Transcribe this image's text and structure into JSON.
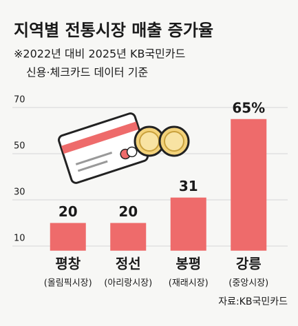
{
  "chart_data": {
    "type": "bar",
    "title": "지역별 전통시장 매출 증가율",
    "subtitle": [
      "※2022년 대비 2025년 KB국민카드",
      "신용·체크카드 데이터 기준"
    ],
    "categories": [
      "평창",
      "정선",
      "봉평",
      "강릉"
    ],
    "category_notes": [
      "(올림픽시장)",
      "(아리랑시장)",
      "(재래시장)",
      "(중앙시장)"
    ],
    "values": [
      20,
      20,
      31,
      65
    ],
    "value_labels": [
      "20",
      "20",
      "31",
      "65%"
    ],
    "color": "#ee6b6b",
    "ylim": [
      8,
      72
    ],
    "yticks": [
      10,
      30,
      50,
      70
    ],
    "grid": true,
    "source": "자료:KB국민카드"
  }
}
